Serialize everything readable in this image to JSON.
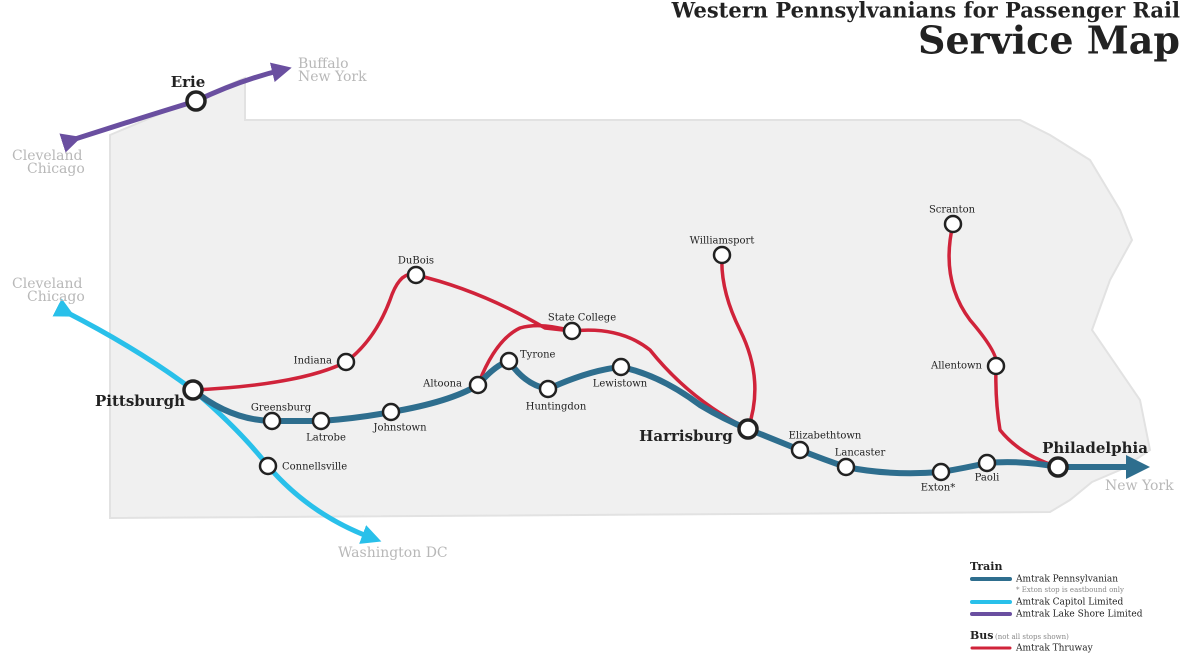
{
  "header": {
    "subtitle": "Western Pennsylvanians for Passenger Rail",
    "title": "Service Map"
  },
  "stations": [
    {
      "label": "Erie"
    },
    {
      "label": "Pittsburgh"
    },
    {
      "label": "Greensburg"
    },
    {
      "label": "Latrobe"
    },
    {
      "label": "Johnstown"
    },
    {
      "label": "Altoona"
    },
    {
      "label": "Tyrone"
    },
    {
      "label": "Huntingdon"
    },
    {
      "label": "Lewistown"
    },
    {
      "label": "Harrisburg"
    },
    {
      "label": "Elizabethtown"
    },
    {
      "label": "Lancaster"
    },
    {
      "label": "Exton*"
    },
    {
      "label": "Paoli"
    },
    {
      "label": "Philadelphia"
    },
    {
      "label": "Connellsville"
    },
    {
      "label": "Indiana"
    },
    {
      "label": "DuBois"
    },
    {
      "label": "State College"
    },
    {
      "label": "Williamsport"
    },
    {
      "label": "Scranton"
    },
    {
      "label": "Allentown"
    }
  ],
  "endpoints": [
    {
      "lines": [
        "Buffalo",
        "New York"
      ]
    },
    {
      "lines": [
        "Cleveland",
        "Chicago"
      ]
    },
    {
      "lines": [
        "Cleveland",
        "Chicago"
      ]
    },
    {
      "lines": [
        "Washington DC"
      ]
    },
    {
      "lines": [
        "New York"
      ]
    }
  ],
  "legend": {
    "train_heading": "Train",
    "train_items": [
      {
        "label": "Amtrak Pennsylvanian",
        "note": "* Exton stop is eastbound only"
      },
      {
        "label": "Amtrak Capitol Limited"
      },
      {
        "label": "Amtrak Lake Shore Limited"
      }
    ],
    "bus_heading": "Bus",
    "bus_note": "(not all stops shown)",
    "bus_items": [
      {
        "label": "Amtrak Thruway"
      }
    ]
  }
}
